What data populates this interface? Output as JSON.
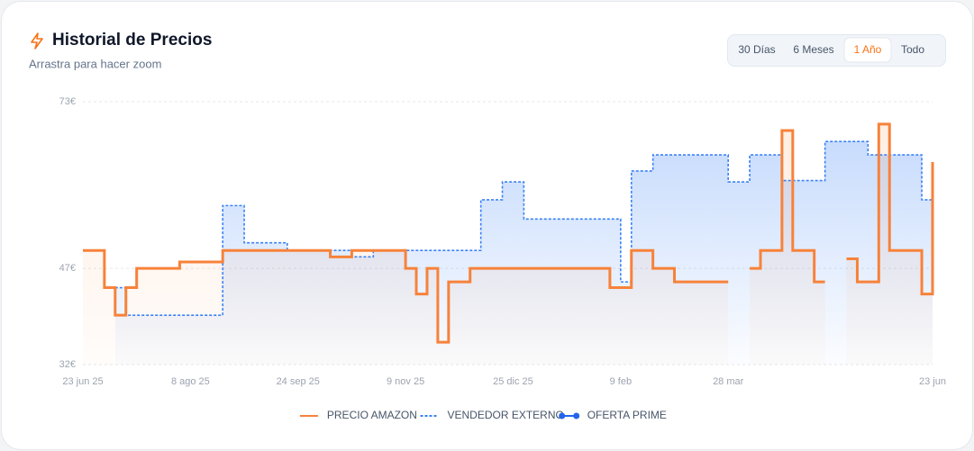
{
  "chart_data": {
    "type": "step-line",
    "title": "Historial de Precios",
    "subtitle": "Arrastra para hacer zoom",
    "range_buttons": [
      "30 Días",
      "6 Meses",
      "1 Año",
      "Todo"
    ],
    "active_range": "1 Año",
    "categories": [
      "23 jun 25",
      null,
      null,
      null,
      null,
      null,
      null,
      null,
      null,
      null,
      "8 ago 25",
      null,
      null,
      null,
      null,
      null,
      null,
      null,
      null,
      null,
      "24 sep 25",
      null,
      null,
      null,
      null,
      null,
      null,
      null,
      null,
      null,
      "9 nov 25",
      null,
      null,
      null,
      null,
      null,
      null,
      null,
      null,
      null,
      "25 dic 25",
      null,
      null,
      null,
      null,
      null,
      null,
      null,
      null,
      null,
      "9 feb",
      null,
      null,
      null,
      null,
      null,
      null,
      null,
      null,
      null,
      "28 mar",
      null,
      null,
      null,
      null,
      null,
      null,
      null,
      null,
      null,
      null,
      null,
      null,
      null,
      null,
      null,
      null,
      null,
      null,
      "23 jun"
    ],
    "ylim": [
      32,
      73
    ],
    "yticks": [
      {
        "value": 32,
        "label": "32€"
      },
      {
        "value": 47,
        "label": "47€"
      },
      {
        "value": 73,
        "label": "73€"
      }
    ],
    "grid": true,
    "series": [
      {
        "name": "PRECIO AMAZON",
        "color": "#f7823a",
        "line_style": "solid",
        "values": [
          49.8,
          49.8,
          44,
          39.7,
          44,
          47,
          47,
          47,
          47,
          48,
          48,
          48,
          48,
          49.8,
          49.8,
          49.8,
          49.8,
          49.8,
          49.8,
          49.8,
          49.8,
          49.8,
          49.8,
          48.8,
          48.8,
          49.8,
          49.8,
          49.8,
          49.8,
          49.8,
          47,
          43,
          47,
          35.5,
          44.9,
          44.9,
          47,
          47,
          47,
          47,
          47,
          47,
          47,
          47,
          47,
          47,
          47,
          47,
          47,
          44,
          44,
          49.8,
          49.8,
          47,
          47,
          44.9,
          44.9,
          44.9,
          44.9,
          44.9,
          null,
          null,
          47,
          49.8,
          49.8,
          68.5,
          49.8,
          49.8,
          44.9,
          null,
          null,
          48.5,
          44.9,
          44.9,
          69.5,
          49.8,
          49.8,
          49.8,
          43,
          63.6
        ]
      },
      {
        "name": "VENDEDOR EXTERNO",
        "color": "#3b82f6",
        "line_style": "dashed",
        "values": [
          null,
          null,
          null,
          44,
          39.7,
          39.7,
          39.7,
          39.7,
          39.7,
          39.7,
          39.7,
          39.7,
          39.7,
          56.8,
          56.8,
          51,
          51,
          51,
          51,
          49.8,
          49.8,
          49.8,
          49.8,
          49.8,
          49.8,
          48.8,
          48.8,
          49.8,
          49.8,
          49.8,
          49.8,
          49.8,
          49.8,
          49.8,
          49.8,
          49.8,
          49.8,
          57.7,
          57.7,
          60.5,
          60.5,
          54.7,
          54.7,
          54.7,
          54.7,
          54.7,
          54.7,
          54.7,
          54.7,
          54.7,
          44.9,
          62.2,
          62.2,
          64.7,
          64.7,
          64.7,
          64.7,
          64.7,
          64.7,
          64.7,
          60.5,
          60.5,
          64.7,
          64.7,
          64.7,
          60.7,
          60.7,
          60.7,
          60.7,
          66.8,
          66.8,
          66.8,
          66.8,
          64.7,
          64.7,
          64.7,
          64.7,
          64.7,
          57.7,
          57.7
        ]
      },
      {
        "name": "OFERTA PRIME",
        "color": "#2563eb",
        "line_style": "dot-marker",
        "values": [
          null,
          null,
          null,
          null,
          null,
          null,
          null,
          null,
          null,
          null,
          null,
          null,
          null,
          null,
          null,
          null,
          null,
          null,
          null,
          null,
          null,
          null,
          null,
          null,
          null,
          null,
          null,
          null,
          null,
          null,
          null,
          null,
          null,
          null,
          null,
          null,
          null,
          null,
          null,
          null,
          null,
          null,
          null,
          null,
          null,
          null,
          null,
          null,
          null,
          null,
          null,
          null,
          null,
          null,
          null,
          null,
          null,
          null,
          null,
          null,
          null,
          null,
          null,
          null,
          null,
          null,
          null,
          null,
          null,
          null,
          null,
          null,
          null,
          null,
          null,
          null,
          null,
          null,
          null,
          null
        ]
      }
    ]
  }
}
